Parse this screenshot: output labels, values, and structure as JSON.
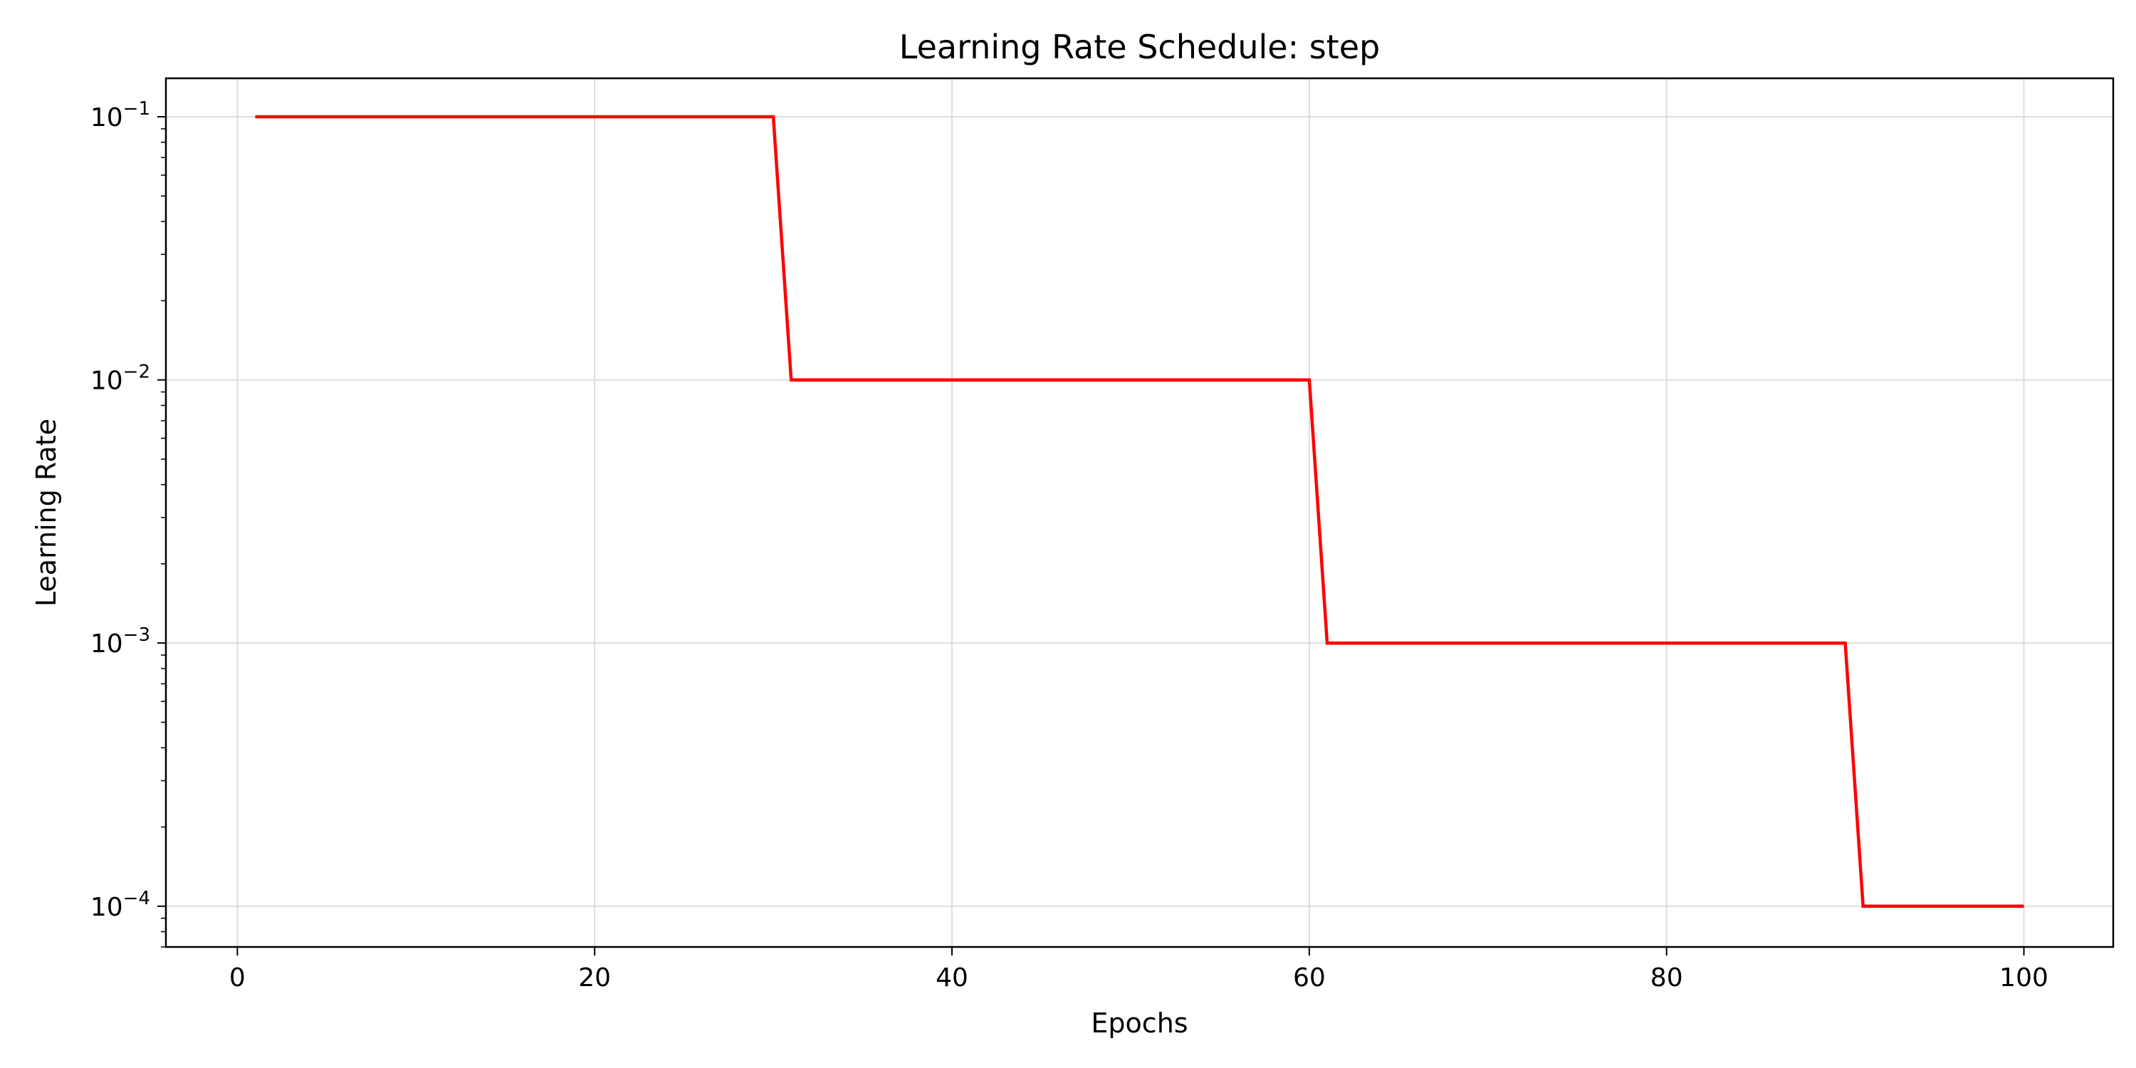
{
  "chart_data": {
    "type": "line",
    "title": "Learning Rate Schedule: step",
    "xlabel": "Epochs",
    "ylabel": "Learning Rate",
    "xlim": [
      -4,
      105
    ],
    "ylim": [
      7e-05,
      0.14
    ],
    "yscale": "log",
    "grid": true,
    "x_ticks": [
      0,
      20,
      40,
      60,
      80,
      100
    ],
    "y_ticks": [
      {
        "value": 0.1,
        "base": "10",
        "exp": "−1"
      },
      {
        "value": 0.01,
        "base": "10",
        "exp": "−2"
      },
      {
        "value": 0.001,
        "base": "10",
        "exp": "−3"
      },
      {
        "value": 0.0001,
        "base": "10",
        "exp": "−4"
      }
    ],
    "series": [
      {
        "color": "#ff0000",
        "x": [
          1,
          30,
          31,
          60,
          61,
          90,
          91,
          100
        ],
        "y": [
          0.1,
          0.1,
          0.01,
          0.01,
          0.001,
          0.001,
          0.0001,
          0.0001
        ]
      }
    ]
  }
}
